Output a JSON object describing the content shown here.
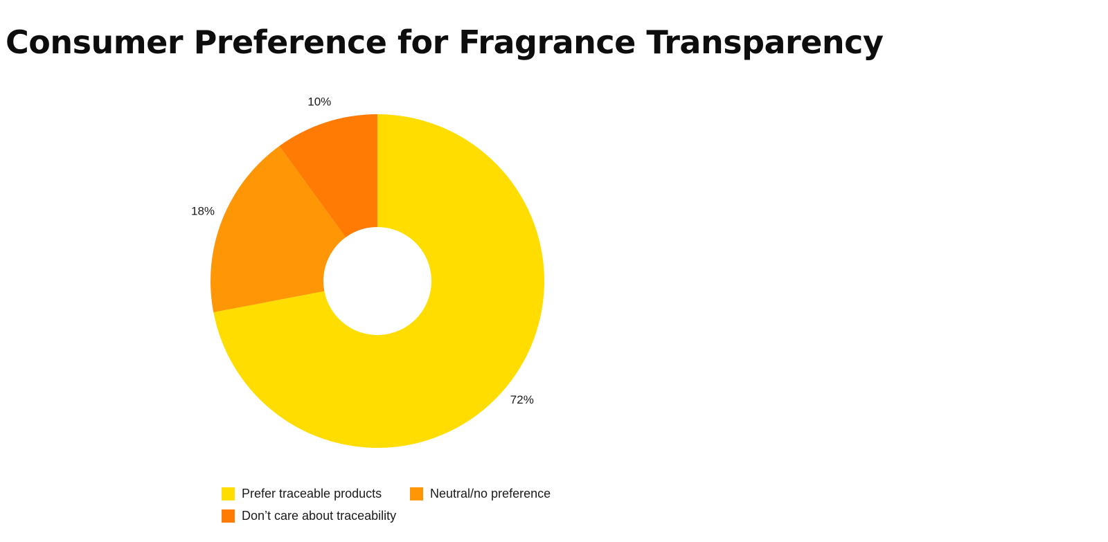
{
  "chart_data": {
    "type": "pie",
    "donut": true,
    "title": "Consumer Preference for Fragrance Transparency",
    "legend_position": "bottom",
    "slices": [
      {
        "label": "Prefer traceable products",
        "value": 72,
        "value_label": "72%",
        "color": "#FFDD00"
      },
      {
        "label": "Neutral/no preference",
        "value": 18,
        "value_label": "18%",
        "color": "#FF9605"
      },
      {
        "label": "Don’t care about traceability",
        "value": 10,
        "value_label": "10%",
        "color": "#FF7B04"
      }
    ]
  }
}
